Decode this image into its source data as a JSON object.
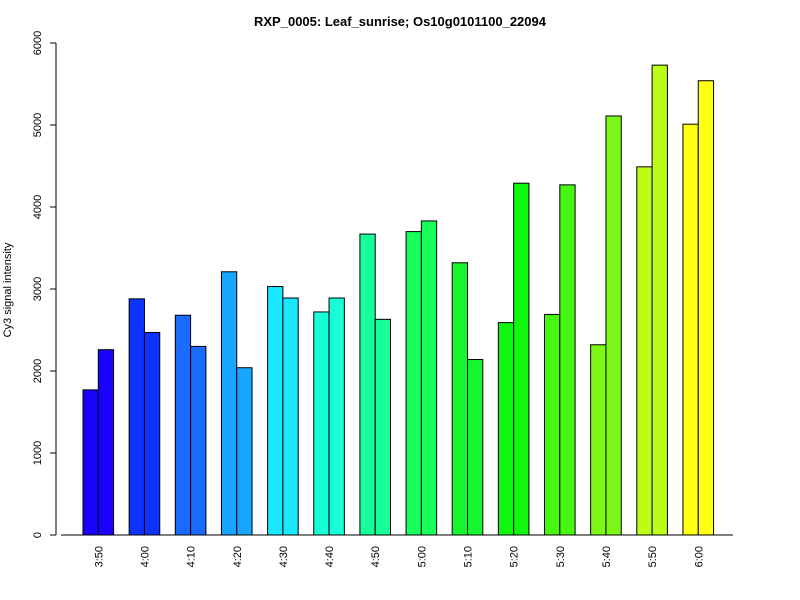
{
  "chart_data": {
    "type": "bar",
    "title": "RXP_0005: Leaf_sunrise; Os10g0101100_22094",
    "xlabel": "",
    "ylabel": "Cy3 signal intensity",
    "ylim": [
      0,
      6000
    ],
    "yticks": [
      0,
      1000,
      2000,
      3000,
      4000,
      5000,
      6000
    ],
    "grid": false,
    "legend": "none",
    "categories": [
      "3:50",
      "4:00",
      "4:10",
      "4:20",
      "4:30",
      "4:40",
      "4:50",
      "5:00",
      "5:10",
      "5:20",
      "5:30",
      "5:40",
      "5:50",
      "6:00"
    ],
    "series": [
      {
        "values": [
          1770,
          2880,
          2680,
          3210,
          3030,
          2720,
          3670,
          3700,
          3320,
          2590,
          2690,
          2320,
          4490,
          5010
        ]
      },
      {
        "values": [
          2260,
          2470,
          2300,
          2040,
          2890,
          2890,
          2630,
          3830,
          2140,
          4290,
          4270,
          5110,
          5730,
          5540
        ]
      }
    ],
    "colors": [
      "#1900ff",
      "#0d33ff",
      "#1a6bff",
      "#16a6ff",
      "#1ae8ff",
      "#16ffd6",
      "#16ff98",
      "#16ff5a",
      "#16f52d",
      "#0ff70f",
      "#45f711",
      "#7df716",
      "#bdfc17",
      "#ffff12"
    ]
  }
}
